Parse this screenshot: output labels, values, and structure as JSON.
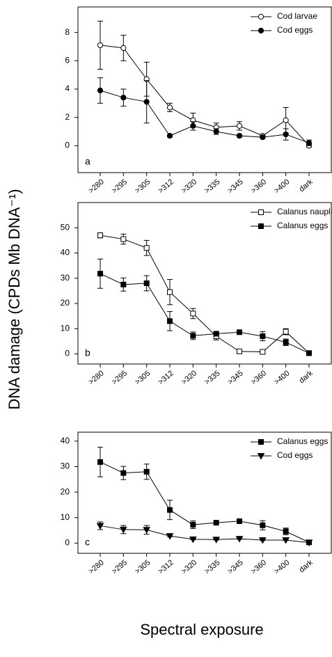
{
  "y_label": "DNA damage (CPDs Mb DNA⁻¹)",
  "x_label": "Spectral exposure",
  "chart_data": [
    {
      "type": "line",
      "annotation": "a",
      "categories": [
        ">280",
        ">295",
        ">305",
        ">312",
        ">320",
        ">335",
        ">345",
        ">360",
        ">400",
        "dark"
      ],
      "ylim": [
        -1.9,
        9.8
      ],
      "yticks": [
        0,
        2,
        4,
        6,
        8
      ],
      "legend": "upper right",
      "series": [
        {
          "name": "Cod larvae",
          "color": "#000000",
          "marker": "circle",
          "filled": false,
          "values": [
            7.1,
            6.9,
            4.7,
            2.7,
            1.8,
            1.3,
            1.4,
            0.7,
            1.8,
            0.0
          ],
          "errors": [
            1.7,
            0.9,
            1.2,
            0.3,
            0.5,
            0.3,
            0.3,
            0.1,
            0.9,
            0.1
          ]
        },
        {
          "name": "Cod eggs",
          "color": "#000000",
          "marker": "circle",
          "filled": true,
          "values": [
            3.9,
            3.4,
            3.1,
            0.7,
            1.4,
            1.0,
            0.7,
            0.6,
            0.8,
            0.2
          ],
          "errors": [
            0.9,
            0.6,
            1.5,
            0.1,
            0.3,
            0.2,
            0.1,
            0.1,
            0.4,
            0.2
          ]
        }
      ]
    },
    {
      "type": "line",
      "annotation": "b",
      "categories": [
        ">280",
        ">295",
        ">305",
        ">312",
        ">320",
        ">335",
        ">345",
        ">360",
        ">400",
        "dark"
      ],
      "ylim": [
        -4,
        60
      ],
      "yticks": [
        0,
        10,
        20,
        30,
        40,
        50
      ],
      "legend": "upper right",
      "series": [
        {
          "name": "Calanus nauplii",
          "color": "#000000",
          "marker": "square",
          "filled": false,
          "values": [
            47,
            45.5,
            42,
            24.5,
            16,
            7,
            1,
            0.8,
            8.8,
            0.3
          ],
          "errors": [
            1,
            2,
            3,
            5,
            2,
            1.5,
            0.3,
            0.3,
            1.2,
            0.2
          ]
        },
        {
          "name": "Calanus eggs",
          "color": "#000000",
          "marker": "square",
          "filled": true,
          "values": [
            31.8,
            27.5,
            28,
            13,
            7.2,
            8,
            8.6,
            7,
            4.6,
            0.3
          ],
          "errors": [
            5.8,
            2.6,
            3,
            3.8,
            1.5,
            0.8,
            0.8,
            1.8,
            1.3,
            0.2
          ]
        }
      ]
    },
    {
      "type": "line",
      "annotation": "c",
      "categories": [
        ">280",
        ">295",
        ">305",
        ">312",
        ">320",
        ">335",
        ">345",
        ">360",
        ">400",
        "dark"
      ],
      "ylim": [
        -4,
        43.5
      ],
      "yticks": [
        0,
        10,
        20,
        30,
        40
      ],
      "legend": "upper right",
      "series": [
        {
          "name": "Calanus eggs",
          "color": "#000000",
          "marker": "square",
          "filled": true,
          "values": [
            31.8,
            27.5,
            28,
            13,
            7.2,
            8,
            8.6,
            7,
            4.6,
            0.3
          ],
          "errors": [
            5.8,
            2.6,
            3,
            3.8,
            1.5,
            0.8,
            0.8,
            1.8,
            1.3,
            0.2
          ]
        },
        {
          "name": "Cod eggs",
          "color": "#000000",
          "marker": "triangle-down",
          "filled": true,
          "values": [
            6.8,
            5.3,
            5.2,
            2.8,
            1.5,
            1.4,
            1.7,
            1.2,
            1.2,
            0.2
          ],
          "errors": [
            1.5,
            1.6,
            1.7,
            0.3,
            0.2,
            0.2,
            0.2,
            0.2,
            0.2,
            0.3
          ]
        }
      ]
    }
  ]
}
